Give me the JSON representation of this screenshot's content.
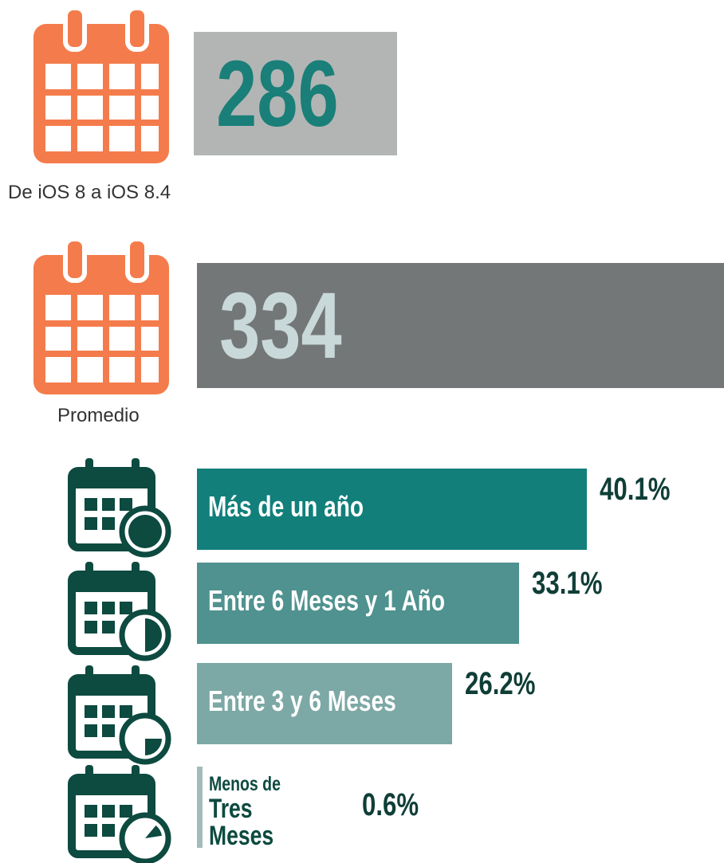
{
  "stats": [
    {
      "value": 286,
      "label": "De iOS 8 a iOS 8.4"
    },
    {
      "value": 334,
      "label": "Promedio"
    }
  ],
  "chart_data": {
    "type": "bar",
    "orientation": "horizontal",
    "categories": [
      "Más de un año",
      "Entre 6 Meses y 1 Año",
      "Entre 3 y 6 Meses",
      "Menos de\nTres Meses"
    ],
    "values": [
      40.1,
      33.1,
      26.2,
      0.6
    ],
    "value_labels": [
      "40.1%",
      "33.1%",
      "26.2%",
      "0.6%"
    ],
    "colors": [
      "#127f7b",
      "#4f928f",
      "#7ca8a5",
      "#a3bcba"
    ]
  }
}
